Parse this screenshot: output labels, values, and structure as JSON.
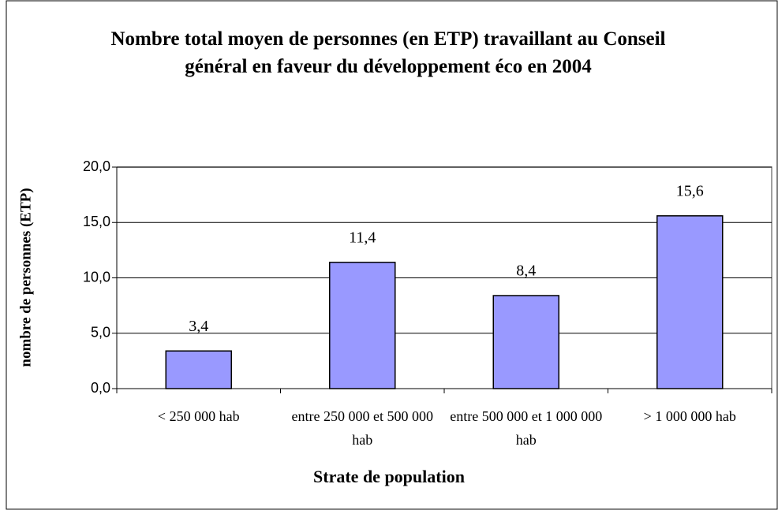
{
  "chart_data": {
    "type": "bar",
    "title": "Nombre total moyen de personnes (en ETP) travaillant au Conseil général en faveur du développement éco en 2004",
    "x_label": "Strate de population",
    "y_label": "nombre de personnes (ETP)",
    "categories": [
      "< 250 000 hab",
      "entre 250 000 et 500 000 hab",
      "entre 500 000 et 1 000 000 hab",
      "> 1 000 000 hab"
    ],
    "values": [
      3.4,
      11.4,
      8.4,
      15.6
    ],
    "value_labels": [
      "3,4",
      "11,4",
      "8,4",
      "15,6"
    ],
    "color": "#9999ff",
    "ylim": [
      0,
      20
    ],
    "yticks": [
      {
        "value": 0,
        "label": "0,0"
      },
      {
        "value": 5,
        "label": "5,0"
      },
      {
        "value": 10,
        "label": "10,0"
      },
      {
        "value": 15,
        "label": "15,0"
      },
      {
        "value": 20,
        "label": "20,0"
      }
    ],
    "grid": true
  }
}
